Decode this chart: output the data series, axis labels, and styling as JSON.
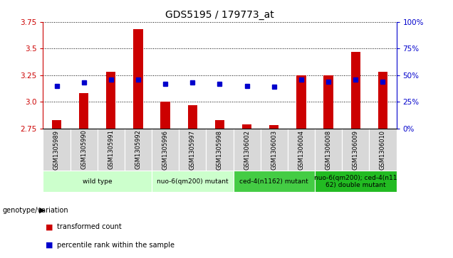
{
  "title": "GDS5195 / 179773_at",
  "samples": [
    "GSM1305989",
    "GSM1305990",
    "GSM1305991",
    "GSM1305992",
    "GSM1305996",
    "GSM1305997",
    "GSM1305998",
    "GSM1306002",
    "GSM1306003",
    "GSM1306004",
    "GSM1306008",
    "GSM1306009",
    "GSM1306010"
  ],
  "bar_values": [
    2.83,
    3.08,
    3.28,
    3.68,
    3.0,
    2.97,
    2.83,
    2.79,
    2.78,
    3.25,
    3.25,
    3.47,
    3.28
  ],
  "percentile_values": [
    40,
    43,
    46,
    46,
    42,
    43,
    42,
    40,
    39,
    46,
    44,
    46,
    44
  ],
  "y_min": 2.75,
  "y_max": 3.75,
  "y_ticks": [
    2.75,
    3.0,
    3.25,
    3.5,
    3.75
  ],
  "right_y_ticks": [
    0,
    25,
    50,
    75,
    100
  ],
  "bar_color": "#cc0000",
  "percentile_color": "#0000cc",
  "bar_bottom": 2.75,
  "groups": [
    {
      "label": "wild type",
      "indices": [
        0,
        1,
        2,
        3
      ],
      "color": "#ccffcc"
    },
    {
      "label": "nuo-6(qm200) mutant",
      "indices": [
        4,
        5,
        6
      ],
      "color": "#ccffcc"
    },
    {
      "label": "ced-4(n1162) mutant",
      "indices": [
        7,
        8,
        9
      ],
      "color": "#44cc44"
    },
    {
      "label": "nuo-6(qm200); ced-4(n11\n62) double mutant",
      "indices": [
        10,
        11,
        12
      ],
      "color": "#22bb22"
    }
  ],
  "left_axis_color": "#cc0000",
  "right_axis_color": "#0000cc",
  "sample_cell_color": "#d8d8d8",
  "genotype_label": "genotype/variation",
  "legend_items": [
    {
      "label": "transformed count",
      "color": "#cc0000"
    },
    {
      "label": "percentile rank within the sample",
      "color": "#0000cc"
    }
  ]
}
